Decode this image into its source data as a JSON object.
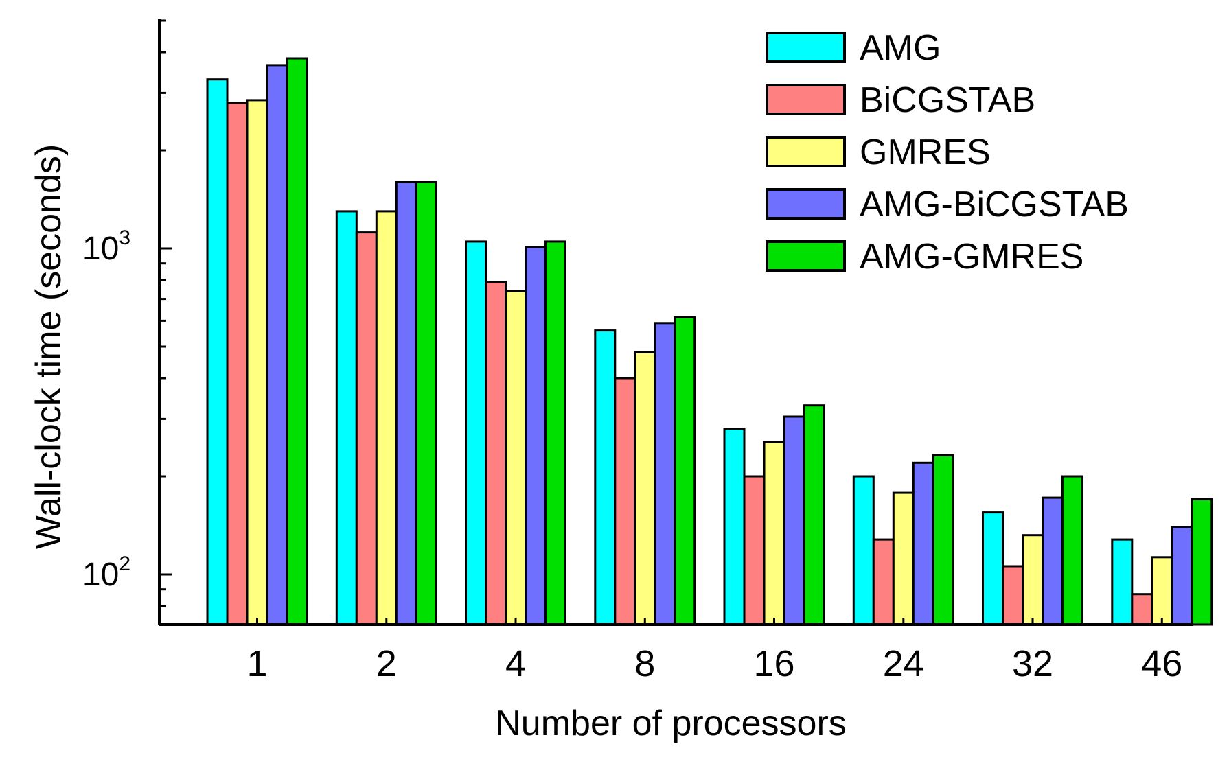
{
  "chart_data": {
    "type": "bar",
    "xlabel": "Number of processors",
    "ylabel": "Wall-clock time (seconds)",
    "y_scale": "log",
    "ylim": [
      75,
      5000
    ],
    "y_ticks": [
      {
        "value": 100,
        "base": "10",
        "exponent": "2"
      },
      {
        "value": 1000,
        "base": "10",
        "exponent": "3"
      }
    ],
    "categories": [
      "1",
      "2",
      "4",
      "8",
      "16",
      "24",
      "32",
      "46"
    ],
    "series": [
      {
        "name": "AMG",
        "color": "#00FFFF",
        "values": [
          3300,
          1300,
          1050,
          560,
          280,
          200,
          155,
          128
        ]
      },
      {
        "name": "BiCGSTAB",
        "color": "#FF8080",
        "values": [
          2800,
          1120,
          790,
          400,
          200,
          128,
          106,
          87
        ]
      },
      {
        "name": "GMRES",
        "color": "#FFFF80",
        "values": [
          2850,
          1300,
          740,
          480,
          255,
          178,
          132,
          113
        ]
      },
      {
        "name": "AMG-BiCGSTAB",
        "color": "#7070FF",
        "values": [
          3650,
          1600,
          1010,
          590,
          305,
          220,
          172,
          140
        ]
      },
      {
        "name": "AMG-GMRES",
        "color": "#00E000",
        "values": [
          3830,
          1600,
          1050,
          615,
          330,
          232,
          200,
          170
        ]
      }
    ],
    "legend_position": "top-right",
    "grid": false
  }
}
